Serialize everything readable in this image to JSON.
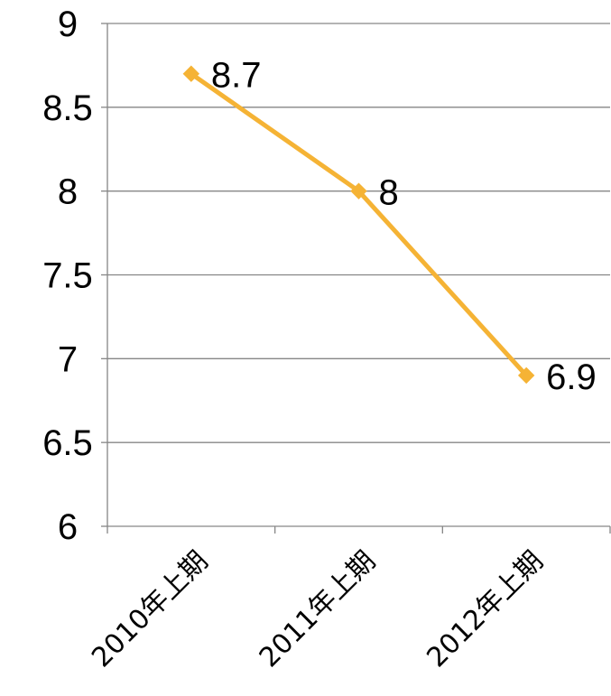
{
  "chart_data": {
    "type": "line",
    "title": "",
    "xlabel": "",
    "ylabel": "",
    "categories": [
      "2010年上期",
      "2011年上期",
      "2012年上期"
    ],
    "series": [
      {
        "values": [
          8.7,
          8.0,
          6.9
        ],
        "data_labels": [
          "8.7",
          "8",
          "6.9"
        ],
        "color": "#F5B335",
        "marker": "diamond"
      }
    ],
    "ylim": [
      6,
      9
    ],
    "yticks": [
      6,
      6.5,
      7,
      7.5,
      8,
      8.5,
      9
    ],
    "ytick_labels": [
      "6",
      "6.5",
      "7",
      "7.5",
      "8",
      "8.5",
      "9"
    ],
    "grid": true,
    "legend": "none",
    "colors": {
      "gridline": "#868686",
      "axis": "#868686",
      "line": "#F5B335"
    }
  }
}
